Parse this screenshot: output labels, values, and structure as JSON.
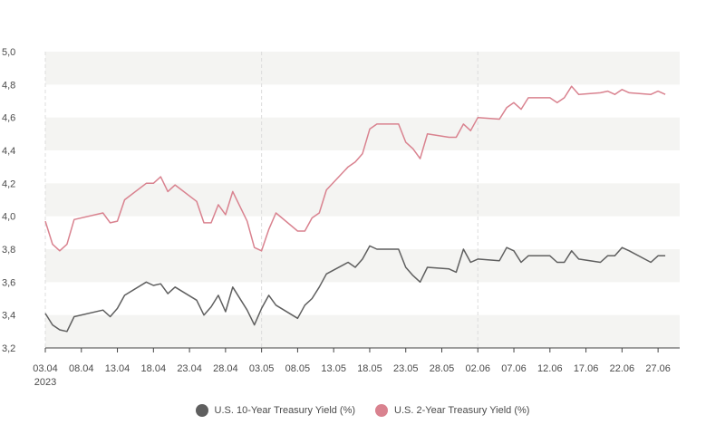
{
  "chart_data": {
    "type": "line",
    "title": "",
    "xlabel": "",
    "ylabel": "",
    "ylim": [
      3.2,
      5.0
    ],
    "yticks": [
      "3,2",
      "3,4",
      "3,6",
      "3,8",
      "4,0",
      "4,2",
      "4,4",
      "4,6",
      "4,8",
      "5,0"
    ],
    "xticks": [
      {
        "label": "03.04",
        "sub": "2023"
      },
      {
        "label": "08.04"
      },
      {
        "label": "13.04"
      },
      {
        "label": "18.04"
      },
      {
        "label": "23.04"
      },
      {
        "label": "28.04"
      },
      {
        "label": "03.05"
      },
      {
        "label": "08.05"
      },
      {
        "label": "13.05"
      },
      {
        "label": "18.05"
      },
      {
        "label": "23.05"
      },
      {
        "label": "28.05"
      },
      {
        "label": "02.06"
      },
      {
        "label": "07.06"
      },
      {
        "label": "12.06"
      },
      {
        "label": "17.06"
      },
      {
        "label": "22.06"
      },
      {
        "label": "27.06"
      }
    ],
    "grid": "alternating horizontal bands",
    "legend_position": "bottom-center",
    "x_days": [
      0,
      1,
      2,
      3,
      4,
      8,
      9,
      10,
      11,
      14,
      15,
      16,
      17,
      18,
      21,
      22,
      23,
      24,
      25,
      26,
      28,
      29,
      30,
      31,
      32,
      35,
      36,
      37,
      38,
      39,
      42,
      43,
      44,
      45,
      46,
      49,
      50,
      51,
      52,
      53,
      56,
      57,
      58,
      59,
      60,
      63,
      64,
      65,
      66,
      67,
      70,
      71,
      72,
      73,
      74,
      77,
      78,
      79,
      80,
      81,
      84,
      85,
      86
    ],
    "series": [
      {
        "name": "U.S. 10-Year Treasury Yield (%)",
        "color": "#5f5f5f",
        "values": [
          3.41,
          3.34,
          3.31,
          3.3,
          3.39,
          3.43,
          3.39,
          3.44,
          3.52,
          3.6,
          3.58,
          3.59,
          3.53,
          3.57,
          3.49,
          3.4,
          3.45,
          3.52,
          3.42,
          3.57,
          3.43,
          3.34,
          3.44,
          3.52,
          3.46,
          3.38,
          3.46,
          3.5,
          3.57,
          3.65,
          3.72,
          3.69,
          3.74,
          3.82,
          3.8,
          3.8,
          3.69,
          3.64,
          3.6,
          3.69,
          3.68,
          3.66,
          3.8,
          3.72,
          3.74,
          3.73,
          3.81,
          3.79,
          3.72,
          3.76,
          3.76,
          3.72,
          3.72,
          3.79,
          3.74,
          3.72,
          3.76,
          3.76,
          3.81,
          3.79,
          3.72,
          3.76,
          3.76
        ]
      },
      {
        "name": "U.S. 2-Year Treasury Yield (%)",
        "color": "#d9828f",
        "values": [
          3.97,
          3.83,
          3.79,
          3.83,
          3.98,
          4.02,
          3.96,
          3.97,
          4.1,
          4.2,
          4.2,
          4.24,
          4.15,
          4.19,
          4.09,
          3.96,
          3.96,
          4.07,
          4.01,
          4.15,
          3.97,
          3.81,
          3.79,
          3.92,
          4.02,
          3.91,
          3.91,
          3.99,
          4.02,
          4.16,
          4.3,
          4.33,
          4.38,
          4.53,
          4.56,
          4.56,
          4.45,
          4.41,
          4.35,
          4.5,
          4.48,
          4.48,
          4.56,
          4.52,
          4.6,
          4.59,
          4.66,
          4.69,
          4.65,
          4.72,
          4.72,
          4.69,
          4.72,
          4.79,
          4.74,
          4.75,
          4.76,
          4.74,
          4.77,
          4.75,
          4.74,
          4.76,
          4.74
        ]
      }
    ]
  }
}
